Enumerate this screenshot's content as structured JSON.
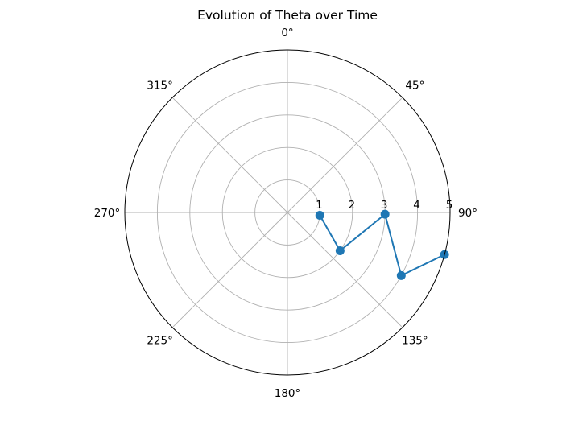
{
  "chart_data": {
    "type": "polar-line",
    "title": "Evolution of Theta over Time",
    "theta_zero_location": "N",
    "theta_direction": "clockwise",
    "theta_ticks": [
      {
        "deg": 0,
        "label": "0°"
      },
      {
        "deg": 45,
        "label": "45°"
      },
      {
        "deg": 90,
        "label": "90°"
      },
      {
        "deg": 135,
        "label": "135°"
      },
      {
        "deg": 180,
        "label": "180°"
      },
      {
        "deg": 225,
        "label": "225°"
      },
      {
        "deg": 270,
        "label": "270°"
      },
      {
        "deg": 315,
        "label": "315°"
      }
    ],
    "r_ticks": [
      {
        "value": 1,
        "label": "1"
      },
      {
        "value": 2,
        "label": "2"
      },
      {
        "value": 3,
        "label": "3"
      },
      {
        "value": 4,
        "label": "4"
      },
      {
        "value": 5,
        "label": "5"
      }
    ],
    "r_max": 5,
    "grid": true,
    "series": [
      {
        "color": "#1f77b4",
        "marker": "circle",
        "points": [
          {
            "theta_deg": 95,
            "r": 1.0
          },
          {
            "theta_deg": 126,
            "r": 2.0
          },
          {
            "theta_deg": 91,
            "r": 3.0
          },
          {
            "theta_deg": 119,
            "r": 4.0
          },
          {
            "theta_deg": 105,
            "r": 5.0
          }
        ]
      }
    ]
  }
}
